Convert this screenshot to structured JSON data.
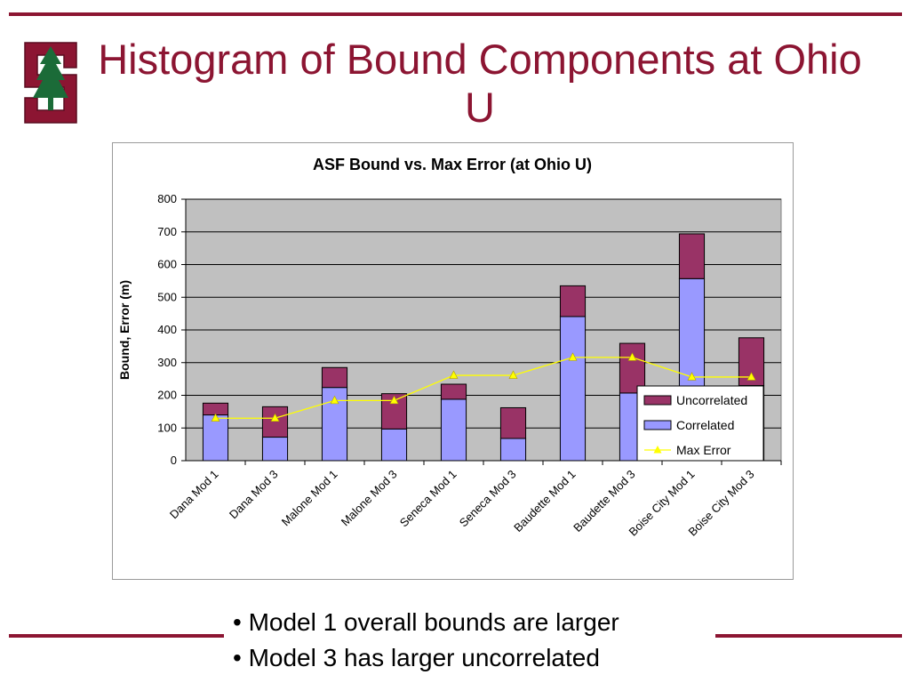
{
  "slide": {
    "title": "Histogram of Bound Components at Ohio U",
    "bullets": [
      "• Model 1 overall bounds are larger",
      "• Model 3 has larger uncorrelated"
    ],
    "colors": {
      "accent": "#8c1532",
      "logo_tree": "#1b6b38"
    }
  },
  "chart_data": {
    "type": "bar",
    "stacked": true,
    "title": "ASF Bound vs. Max Error (at Ohio U)",
    "xlabel": "",
    "ylabel": "Bound, Error (m)",
    "ylim": [
      0,
      800
    ],
    "yticks": [
      0,
      100,
      200,
      300,
      400,
      500,
      600,
      700,
      800
    ],
    "grid": true,
    "plot_background": "#c0c0c0",
    "legend_position": "bottom-right",
    "categories": [
      "Dana Mod 1",
      "Dana Mod 3",
      "Malone Mod 1",
      "Malone Mod 3",
      "Seneca Mod 1",
      "Seneca Mod 3",
      "Baudette Mod 1",
      "Baudette Mod 3",
      "Boise City Mod 1",
      "Boise City Mod 3"
    ],
    "series": [
      {
        "name": "Correlated",
        "kind": "bar",
        "color": "#9999ff",
        "values": [
          140,
          72,
          224,
          97,
          188,
          68,
          441,
          207,
          557,
          230
        ]
      },
      {
        "name": "Uncorrelated",
        "kind": "bar",
        "color": "#993366",
        "values": [
          36,
          93,
          61,
          108,
          46,
          94,
          94,
          152,
          137,
          146
        ]
      },
      {
        "name": "Max Error",
        "kind": "line",
        "color": "#ffff00",
        "marker": "triangle",
        "values": [
          130,
          130,
          184,
          184,
          261,
          261,
          316,
          316,
          256,
          256
        ]
      }
    ],
    "legend": [
      "Uncorrelated",
      "Correlated",
      "Max Error"
    ]
  }
}
